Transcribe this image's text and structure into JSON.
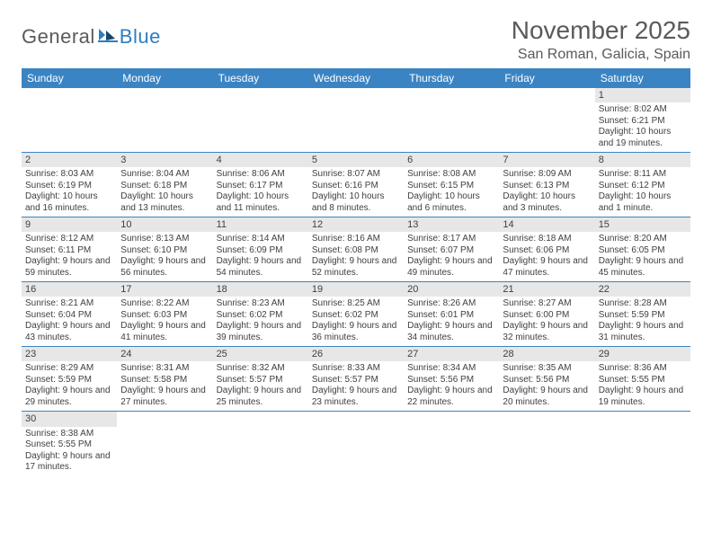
{
  "logo": {
    "text1": "General",
    "text2": "Blue"
  },
  "header": {
    "month_title": "November 2025",
    "location": "San Roman, Galicia, Spain"
  },
  "colors": {
    "header_bg": "#3b84c4",
    "header_fg": "#ffffff",
    "daynum_bg": "#e7e7e7",
    "row_border": "#3b84c4",
    "text": "#404040",
    "title": "#5a5a5a",
    "logo_blue": "#2f7dbf"
  },
  "weekdays": [
    "Sunday",
    "Monday",
    "Tuesday",
    "Wednesday",
    "Thursday",
    "Friday",
    "Saturday"
  ],
  "weeks": [
    [
      {
        "blank": true
      },
      {
        "blank": true
      },
      {
        "blank": true
      },
      {
        "blank": true
      },
      {
        "blank": true
      },
      {
        "blank": true
      },
      {
        "n": "1",
        "sunrise": "Sunrise: 8:02 AM",
        "sunset": "Sunset: 6:21 PM",
        "daylight": "Daylight: 10 hours and 19 minutes."
      }
    ],
    [
      {
        "n": "2",
        "sunrise": "Sunrise: 8:03 AM",
        "sunset": "Sunset: 6:19 PM",
        "daylight": "Daylight: 10 hours and 16 minutes."
      },
      {
        "n": "3",
        "sunrise": "Sunrise: 8:04 AM",
        "sunset": "Sunset: 6:18 PM",
        "daylight": "Daylight: 10 hours and 13 minutes."
      },
      {
        "n": "4",
        "sunrise": "Sunrise: 8:06 AM",
        "sunset": "Sunset: 6:17 PM",
        "daylight": "Daylight: 10 hours and 11 minutes."
      },
      {
        "n": "5",
        "sunrise": "Sunrise: 8:07 AM",
        "sunset": "Sunset: 6:16 PM",
        "daylight": "Daylight: 10 hours and 8 minutes."
      },
      {
        "n": "6",
        "sunrise": "Sunrise: 8:08 AM",
        "sunset": "Sunset: 6:15 PM",
        "daylight": "Daylight: 10 hours and 6 minutes."
      },
      {
        "n": "7",
        "sunrise": "Sunrise: 8:09 AM",
        "sunset": "Sunset: 6:13 PM",
        "daylight": "Daylight: 10 hours and 3 minutes."
      },
      {
        "n": "8",
        "sunrise": "Sunrise: 8:11 AM",
        "sunset": "Sunset: 6:12 PM",
        "daylight": "Daylight: 10 hours and 1 minute."
      }
    ],
    [
      {
        "n": "9",
        "sunrise": "Sunrise: 8:12 AM",
        "sunset": "Sunset: 6:11 PM",
        "daylight": "Daylight: 9 hours and 59 minutes."
      },
      {
        "n": "10",
        "sunrise": "Sunrise: 8:13 AM",
        "sunset": "Sunset: 6:10 PM",
        "daylight": "Daylight: 9 hours and 56 minutes."
      },
      {
        "n": "11",
        "sunrise": "Sunrise: 8:14 AM",
        "sunset": "Sunset: 6:09 PM",
        "daylight": "Daylight: 9 hours and 54 minutes."
      },
      {
        "n": "12",
        "sunrise": "Sunrise: 8:16 AM",
        "sunset": "Sunset: 6:08 PM",
        "daylight": "Daylight: 9 hours and 52 minutes."
      },
      {
        "n": "13",
        "sunrise": "Sunrise: 8:17 AM",
        "sunset": "Sunset: 6:07 PM",
        "daylight": "Daylight: 9 hours and 49 minutes."
      },
      {
        "n": "14",
        "sunrise": "Sunrise: 8:18 AM",
        "sunset": "Sunset: 6:06 PM",
        "daylight": "Daylight: 9 hours and 47 minutes."
      },
      {
        "n": "15",
        "sunrise": "Sunrise: 8:20 AM",
        "sunset": "Sunset: 6:05 PM",
        "daylight": "Daylight: 9 hours and 45 minutes."
      }
    ],
    [
      {
        "n": "16",
        "sunrise": "Sunrise: 8:21 AM",
        "sunset": "Sunset: 6:04 PM",
        "daylight": "Daylight: 9 hours and 43 minutes."
      },
      {
        "n": "17",
        "sunrise": "Sunrise: 8:22 AM",
        "sunset": "Sunset: 6:03 PM",
        "daylight": "Daylight: 9 hours and 41 minutes."
      },
      {
        "n": "18",
        "sunrise": "Sunrise: 8:23 AM",
        "sunset": "Sunset: 6:02 PM",
        "daylight": "Daylight: 9 hours and 39 minutes."
      },
      {
        "n": "19",
        "sunrise": "Sunrise: 8:25 AM",
        "sunset": "Sunset: 6:02 PM",
        "daylight": "Daylight: 9 hours and 36 minutes."
      },
      {
        "n": "20",
        "sunrise": "Sunrise: 8:26 AM",
        "sunset": "Sunset: 6:01 PM",
        "daylight": "Daylight: 9 hours and 34 minutes."
      },
      {
        "n": "21",
        "sunrise": "Sunrise: 8:27 AM",
        "sunset": "Sunset: 6:00 PM",
        "daylight": "Daylight: 9 hours and 32 minutes."
      },
      {
        "n": "22",
        "sunrise": "Sunrise: 8:28 AM",
        "sunset": "Sunset: 5:59 PM",
        "daylight": "Daylight: 9 hours and 31 minutes."
      }
    ],
    [
      {
        "n": "23",
        "sunrise": "Sunrise: 8:29 AM",
        "sunset": "Sunset: 5:59 PM",
        "daylight": "Daylight: 9 hours and 29 minutes."
      },
      {
        "n": "24",
        "sunrise": "Sunrise: 8:31 AM",
        "sunset": "Sunset: 5:58 PM",
        "daylight": "Daylight: 9 hours and 27 minutes."
      },
      {
        "n": "25",
        "sunrise": "Sunrise: 8:32 AM",
        "sunset": "Sunset: 5:57 PM",
        "daylight": "Daylight: 9 hours and 25 minutes."
      },
      {
        "n": "26",
        "sunrise": "Sunrise: 8:33 AM",
        "sunset": "Sunset: 5:57 PM",
        "daylight": "Daylight: 9 hours and 23 minutes."
      },
      {
        "n": "27",
        "sunrise": "Sunrise: 8:34 AM",
        "sunset": "Sunset: 5:56 PM",
        "daylight": "Daylight: 9 hours and 22 minutes."
      },
      {
        "n": "28",
        "sunrise": "Sunrise: 8:35 AM",
        "sunset": "Sunset: 5:56 PM",
        "daylight": "Daylight: 9 hours and 20 minutes."
      },
      {
        "n": "29",
        "sunrise": "Sunrise: 8:36 AM",
        "sunset": "Sunset: 5:55 PM",
        "daylight": "Daylight: 9 hours and 19 minutes."
      }
    ],
    [
      {
        "n": "30",
        "sunrise": "Sunrise: 8:38 AM",
        "sunset": "Sunset: 5:55 PM",
        "daylight": "Daylight: 9 hours and 17 minutes."
      },
      {
        "blank": true
      },
      {
        "blank": true
      },
      {
        "blank": true
      },
      {
        "blank": true
      },
      {
        "blank": true
      },
      {
        "blank": true
      }
    ]
  ]
}
